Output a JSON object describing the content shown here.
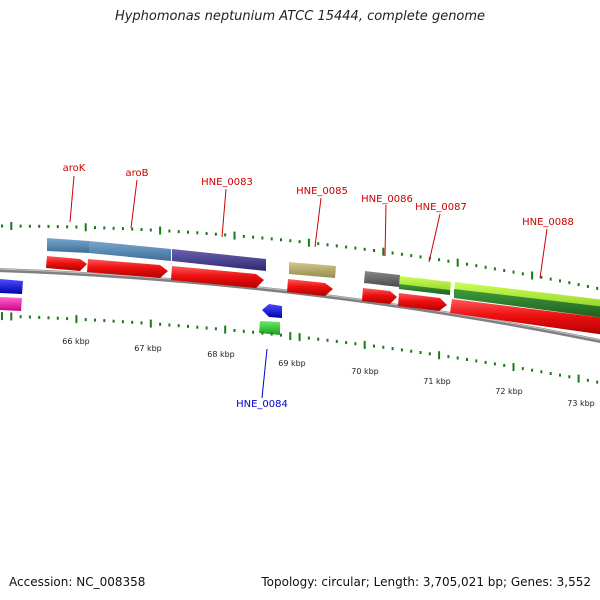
{
  "title": "Hyphomonas neptunium ATCC 15444, complete genome",
  "footer": {
    "accession": "Accession: NC_008358",
    "summary": "Topology: circular; Length: 3,705,021 bp; Genes: 3,552"
  },
  "scale_labels": [
    "66 kbp",
    "67 kbp",
    "68 kbp",
    "69 kbp",
    "70 kbp",
    "71 kbp",
    "72 kbp",
    "73 kbp"
  ],
  "gene_labels": [
    {
      "text": "aroK",
      "strand": "forward"
    },
    {
      "text": "aroB",
      "strand": "forward"
    },
    {
      "text": "HNE_0083",
      "strand": "forward"
    },
    {
      "text": "HNE_0085",
      "strand": "forward"
    },
    {
      "text": "HNE_0086",
      "strand": "forward"
    },
    {
      "text": "HNE_0087",
      "strand": "forward"
    },
    {
      "text": "HNE_0088",
      "strand": "forward"
    },
    {
      "text": "HNE_0084",
      "strand": "reverse"
    }
  ],
  "colors": {
    "forward_label": "#cc0000",
    "reverse_label": "#0000cc",
    "backbone": "#808080",
    "ticks": "#1a7a1a",
    "cds": "#ee1111"
  }
}
